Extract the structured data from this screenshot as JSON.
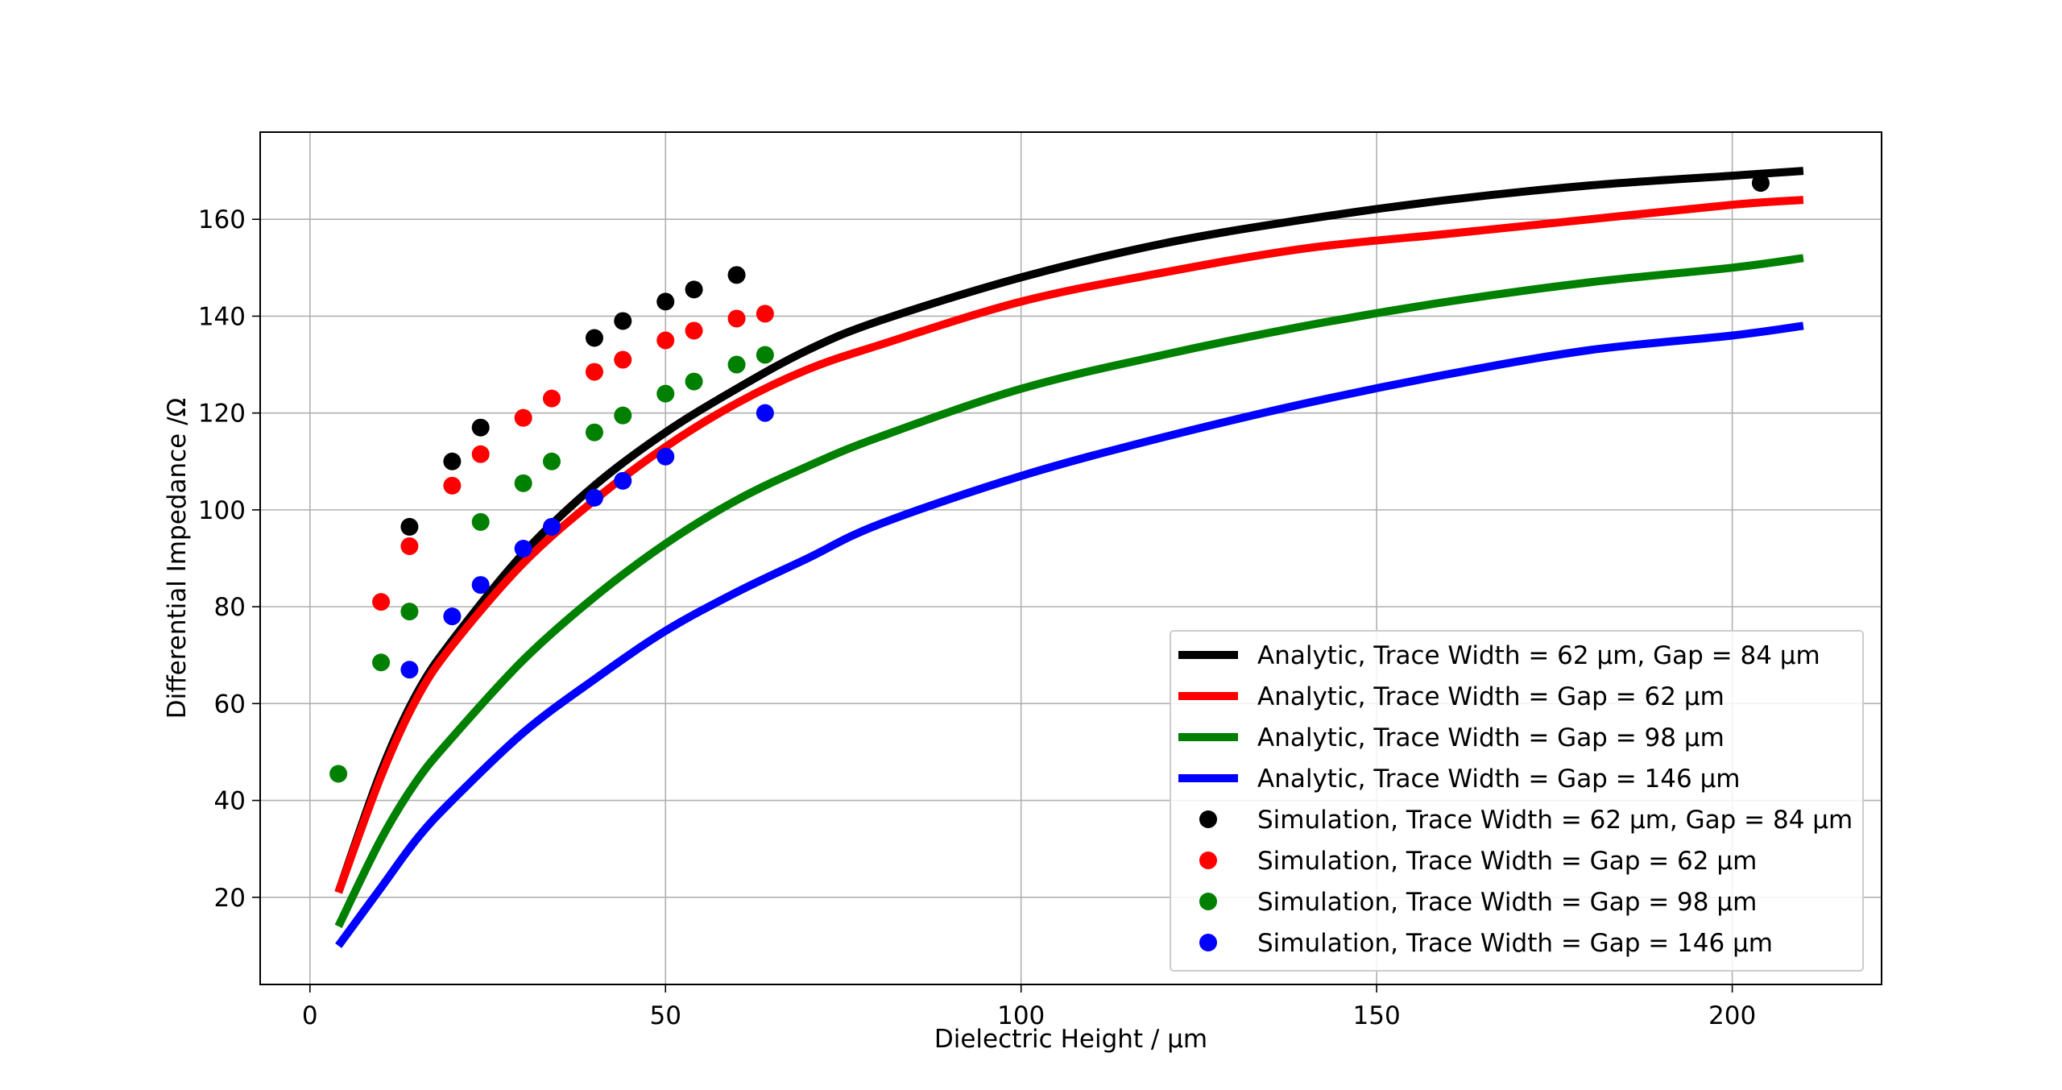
{
  "chart_data": {
    "type": "line",
    "xlabel": "Dielectric Height  / μm",
    "ylabel": "Differential Impedance  /Ω",
    "xlim": [
      -7,
      221
    ],
    "ylim": [
      2,
      178
    ],
    "x_ticks": [
      0,
      50,
      100,
      150,
      200
    ],
    "y_ticks": [
      20,
      40,
      60,
      80,
      100,
      120,
      140,
      160
    ],
    "grid": true,
    "legend_position": "lower-right",
    "series": [
      {
        "name": "Analytic, Trace Width = 62 μm, Gap = 84 μm",
        "kind": "line",
        "color": "#000000",
        "x": [
          4,
          10,
          15,
          20,
          30,
          40,
          50,
          60,
          70,
          80,
          100,
          120,
          140,
          160,
          180,
          200,
          210
        ],
        "y": [
          21,
          46,
          62,
          73,
          91,
          105,
          116,
          125,
          133,
          139,
          148,
          155,
          160,
          164,
          167,
          169,
          170
        ]
      },
      {
        "name": "Analytic, Trace Width = Gap = 62 μm",
        "kind": "line",
        "color": "#ff0000",
        "x": [
          4,
          10,
          15,
          20,
          30,
          40,
          50,
          60,
          70,
          80,
          100,
          120,
          140,
          160,
          180,
          200,
          210
        ],
        "y": [
          21,
          45,
          61,
          72,
          89,
          102,
          113,
          122,
          129,
          134,
          143,
          149,
          154,
          157,
          160,
          163,
          164
        ]
      },
      {
        "name": "Analytic, Trace Width = Gap = 98 μm",
        "kind": "line",
        "color": "#008000",
        "x": [
          4,
          10,
          15,
          20,
          30,
          40,
          50,
          60,
          70,
          80,
          100,
          120,
          140,
          160,
          180,
          200,
          210
        ],
        "y": [
          14,
          32,
          44,
          53,
          69,
          82,
          93,
          102,
          109,
          115,
          125,
          132,
          138,
          143,
          147,
          150,
          152
        ]
      },
      {
        "name": "Analytic, Trace Width = Gap = 146 μm",
        "kind": "line",
        "color": "#0000ff",
        "x": [
          4,
          10,
          15,
          20,
          30,
          40,
          50,
          60,
          70,
          80,
          100,
          120,
          140,
          160,
          180,
          200,
          210
        ],
        "y": [
          10,
          22,
          32,
          40,
          54,
          65,
          75,
          83,
          90,
          97,
          107,
          115,
          122,
          128,
          133,
          136,
          138
        ]
      },
      {
        "name": "Simulation, Trace Width = 62 μm, Gap = 84 μm",
        "kind": "scatter",
        "color": "#000000",
        "x": [
          14,
          20,
          24,
          40,
          44,
          50,
          54,
          60,
          204
        ],
        "y": [
          96.5,
          110,
          117,
          135.5,
          139,
          143,
          145.5,
          148.5,
          167.5
        ]
      },
      {
        "name": "Simulation, Trace Width = Gap = 62 μm",
        "kind": "scatter",
        "color": "#ff0000",
        "x": [
          10,
          14,
          20,
          24,
          30,
          34,
          40,
          44,
          50,
          54,
          60,
          64
        ],
        "y": [
          81,
          92.5,
          105,
          111.5,
          119,
          123,
          128.5,
          131,
          135,
          137,
          139.5,
          140.5
        ]
      },
      {
        "name": "Simulation, Trace Width = Gap = 98 μm",
        "kind": "scatter",
        "color": "#008000",
        "x": [
          4,
          10,
          14,
          24,
          30,
          34,
          40,
          44,
          50,
          54,
          60,
          64
        ],
        "y": [
          45.5,
          68.5,
          79,
          97.5,
          105.5,
          110,
          116,
          119.5,
          124,
          126.5,
          130,
          132
        ]
      },
      {
        "name": "Simulation, Trace Width = Gap = 146 μm",
        "kind": "scatter",
        "color": "#0000ff",
        "x": [
          14,
          20,
          24,
          30,
          34,
          40,
          44,
          50,
          64
        ],
        "y": [
          67,
          78,
          84.5,
          92,
          96.5,
          102.5,
          106,
          111,
          120
        ]
      }
    ],
    "legend": [
      {
        "label": "Analytic, Trace Width = 62 μm, Gap = 84 μm",
        "color": "#000000",
        "marker": "line"
      },
      {
        "label": "Analytic, Trace Width = Gap = 62 μm",
        "color": "#ff0000",
        "marker": "line"
      },
      {
        "label": "Analytic, Trace Width = Gap = 98 μm",
        "color": "#008000",
        "marker": "line"
      },
      {
        "label": "Analytic, Trace Width = Gap = 146 μm",
        "color": "#0000ff",
        "marker": "line"
      },
      {
        "label": "Simulation, Trace Width = 62 μm, Gap = 84 μm",
        "color": "#000000",
        "marker": "dot"
      },
      {
        "label": "Simulation, Trace Width = Gap = 62 μm",
        "color": "#ff0000",
        "marker": "dot"
      },
      {
        "label": "Simulation, Trace Width = Gap = 98 μm",
        "color": "#008000",
        "marker": "dot"
      },
      {
        "label": "Simulation, Trace Width = Gap = 146 μm",
        "color": "#0000ff",
        "marker": "dot"
      }
    ]
  }
}
